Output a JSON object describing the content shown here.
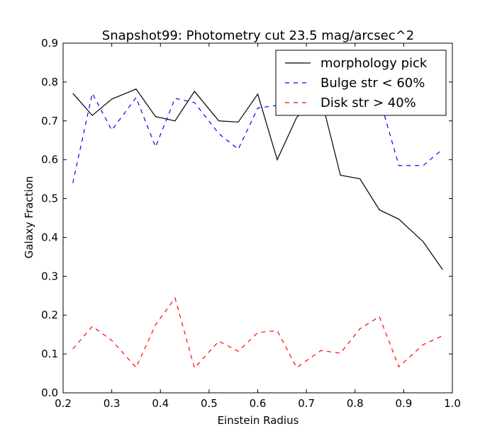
{
  "chart_data": {
    "type": "line",
    "title": "Snapshot99: Photometry cut 23.5 mag/arcsec^2",
    "xlabel": "Einstein Radius",
    "ylabel": "Galaxy Fraction",
    "xlim": [
      0.2,
      1.0
    ],
    "ylim": [
      0.0,
      0.9
    ],
    "xticks": [
      0.2,
      0.3,
      0.4,
      0.5,
      0.6,
      0.7,
      0.8,
      0.9,
      1.0
    ],
    "yticks": [
      0.0,
      0.1,
      0.2,
      0.3,
      0.4,
      0.5,
      0.6,
      0.7,
      0.8,
      0.9
    ],
    "xtick_labels": [
      "0.2",
      "0.3",
      "0.4",
      "0.5",
      "0.6",
      "0.7",
      "0.8",
      "0.9",
      "1.0"
    ],
    "ytick_labels": [
      "0.0",
      "0.1",
      "0.2",
      "0.3",
      "0.4",
      "0.5",
      "0.6",
      "0.7",
      "0.8",
      "0.9"
    ],
    "grid": false,
    "legend_position": "top-right",
    "x": [
      0.22,
      0.26,
      0.3,
      0.35,
      0.39,
      0.43,
      0.47,
      0.52,
      0.56,
      0.6,
      0.64,
      0.68,
      0.73,
      0.77,
      0.81,
      0.85,
      0.89,
      0.94,
      0.98
    ],
    "series": [
      {
        "name": "morphology pick",
        "color": "#000000",
        "style": "solid",
        "values": [
          0.771,
          0.714,
          0.756,
          0.782,
          0.711,
          0.7,
          0.776,
          0.7,
          0.697,
          0.769,
          0.6,
          0.709,
          0.76,
          0.56,
          0.551,
          0.471,
          0.447,
          0.389,
          0.317
        ]
      },
      {
        "name": "Bulge str < 60%",
        "color": "#0000ff",
        "style": "dashed",
        "values": [
          0.54,
          0.771,
          0.676,
          0.76,
          0.633,
          0.758,
          0.747,
          0.667,
          0.627,
          0.733,
          0.74,
          0.738,
          0.735,
          0.735,
          0.76,
          0.76,
          0.585,
          0.585,
          0.627
        ]
      },
      {
        "name": "Disk str > 40%",
        "color": "#ff0000",
        "style": "dashed",
        "values": [
          0.113,
          0.171,
          0.135,
          0.065,
          0.175,
          0.244,
          0.064,
          0.133,
          0.107,
          0.155,
          0.16,
          0.065,
          0.109,
          0.102,
          0.165,
          0.196,
          0.067,
          0.124,
          0.147
        ]
      }
    ]
  }
}
